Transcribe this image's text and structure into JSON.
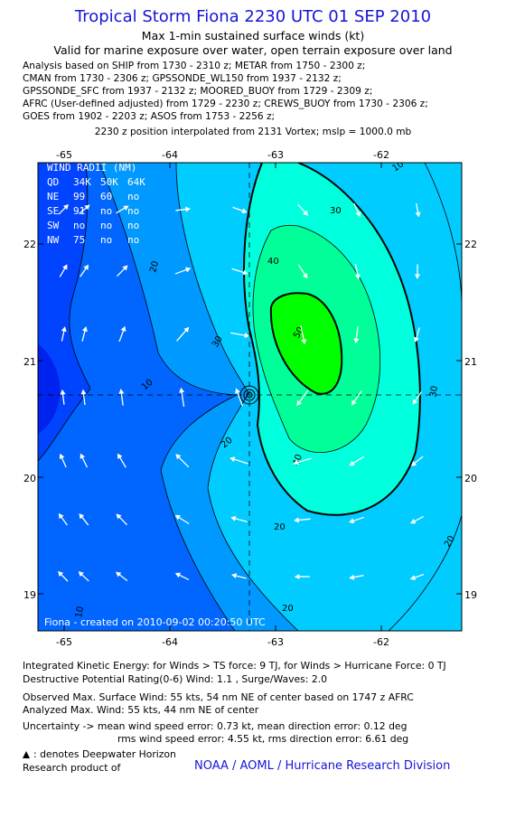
{
  "header": {
    "title": "Tropical Storm Fiona 2230 UTC 01 SEP 2010",
    "subtitle1": "Max 1-min sustained surface winds (kt)",
    "subtitle2": "Valid for marine exposure over water, open terrain exposure over land",
    "analysis_lines": [
      "Analysis based on SHIP from 1730 - 2310 z; METAR from 1750 - 2300 z;",
      "CMAN from 1730 - 2306 z; GPSSONDE_WL150 from 1937 - 2132 z;",
      "GPSSONDE_SFC from 1937 - 2132 z; MOORED_BUOY from 1729 - 2309 z;",
      "AFRC (User-defined adjusted) from 1729 - 2230 z; CREWS_BUOY from 1730 - 2306 z;",
      "GOES from 1902 - 2203 z; ASOS from 1753 - 2256 z;"
    ],
    "position_line": "2230 z position interpolated from 2131 Vortex; mslp = 1000.0 mb"
  },
  "map": {
    "lon_ticks": [
      "-65",
      "-64",
      "-63",
      "-62"
    ],
    "lat_ticks": [
      "22",
      "21",
      "20",
      "19"
    ],
    "center": {
      "lon": -63.07,
      "lat": 20.68
    },
    "contour_labels": [
      "20",
      "30",
      "40",
      "50",
      "10",
      "20",
      "30",
      "30",
      "40",
      "20",
      "20",
      "10",
      "20",
      "10"
    ],
    "wind_radii": {
      "title": "WIND RADII (NM)",
      "header": [
        "QD",
        "34K",
        "50K",
        "64K"
      ],
      "rows": [
        [
          "NE",
          "99",
          "60",
          "no"
        ],
        [
          "SE",
          "91",
          "no",
          "no"
        ],
        [
          "SW",
          "no",
          "no",
          "no"
        ],
        [
          "NW",
          "75",
          "no",
          "no"
        ]
      ]
    },
    "credit": "Fiona - created on 2010-09-02 00:20:50 UTC"
  },
  "footer": {
    "ike": "Integrated Kinetic Energy:  for Winds > TS force: 9 TJ,  for Winds > Hurricane Force: 0 TJ",
    "dpr": "Destructive Potential Rating(0-6)   Wind: 1.1 , Surge/Waves: 2.0",
    "obs": "Observed Max. Surface Wind: 55 kts, 54 nm NE of center based on 1747 z AFRC",
    "analyzed": "Analyzed Max. Wind: 55 kts, 44 nm NE of center",
    "unc1": "Uncertainty -> mean wind speed error: 0.73 kt,   mean direction error: 0.12 deg",
    "unc2": "rms wind speed error: 4.55 kt,   rms direction error: 6.61 deg",
    "deepwater": ": denotes Deepwater Horizon",
    "research": "Research product of",
    "noaa": "NOAA / AOML / Hurricane Research Division"
  },
  "colors": {
    "title": "#1515d8",
    "levels": [
      "#0033ff",
      "#0066ff",
      "#0099ff",
      "#00ccff",
      "#00ffdd",
      "#00ff99",
      "#00ff00"
    ]
  }
}
